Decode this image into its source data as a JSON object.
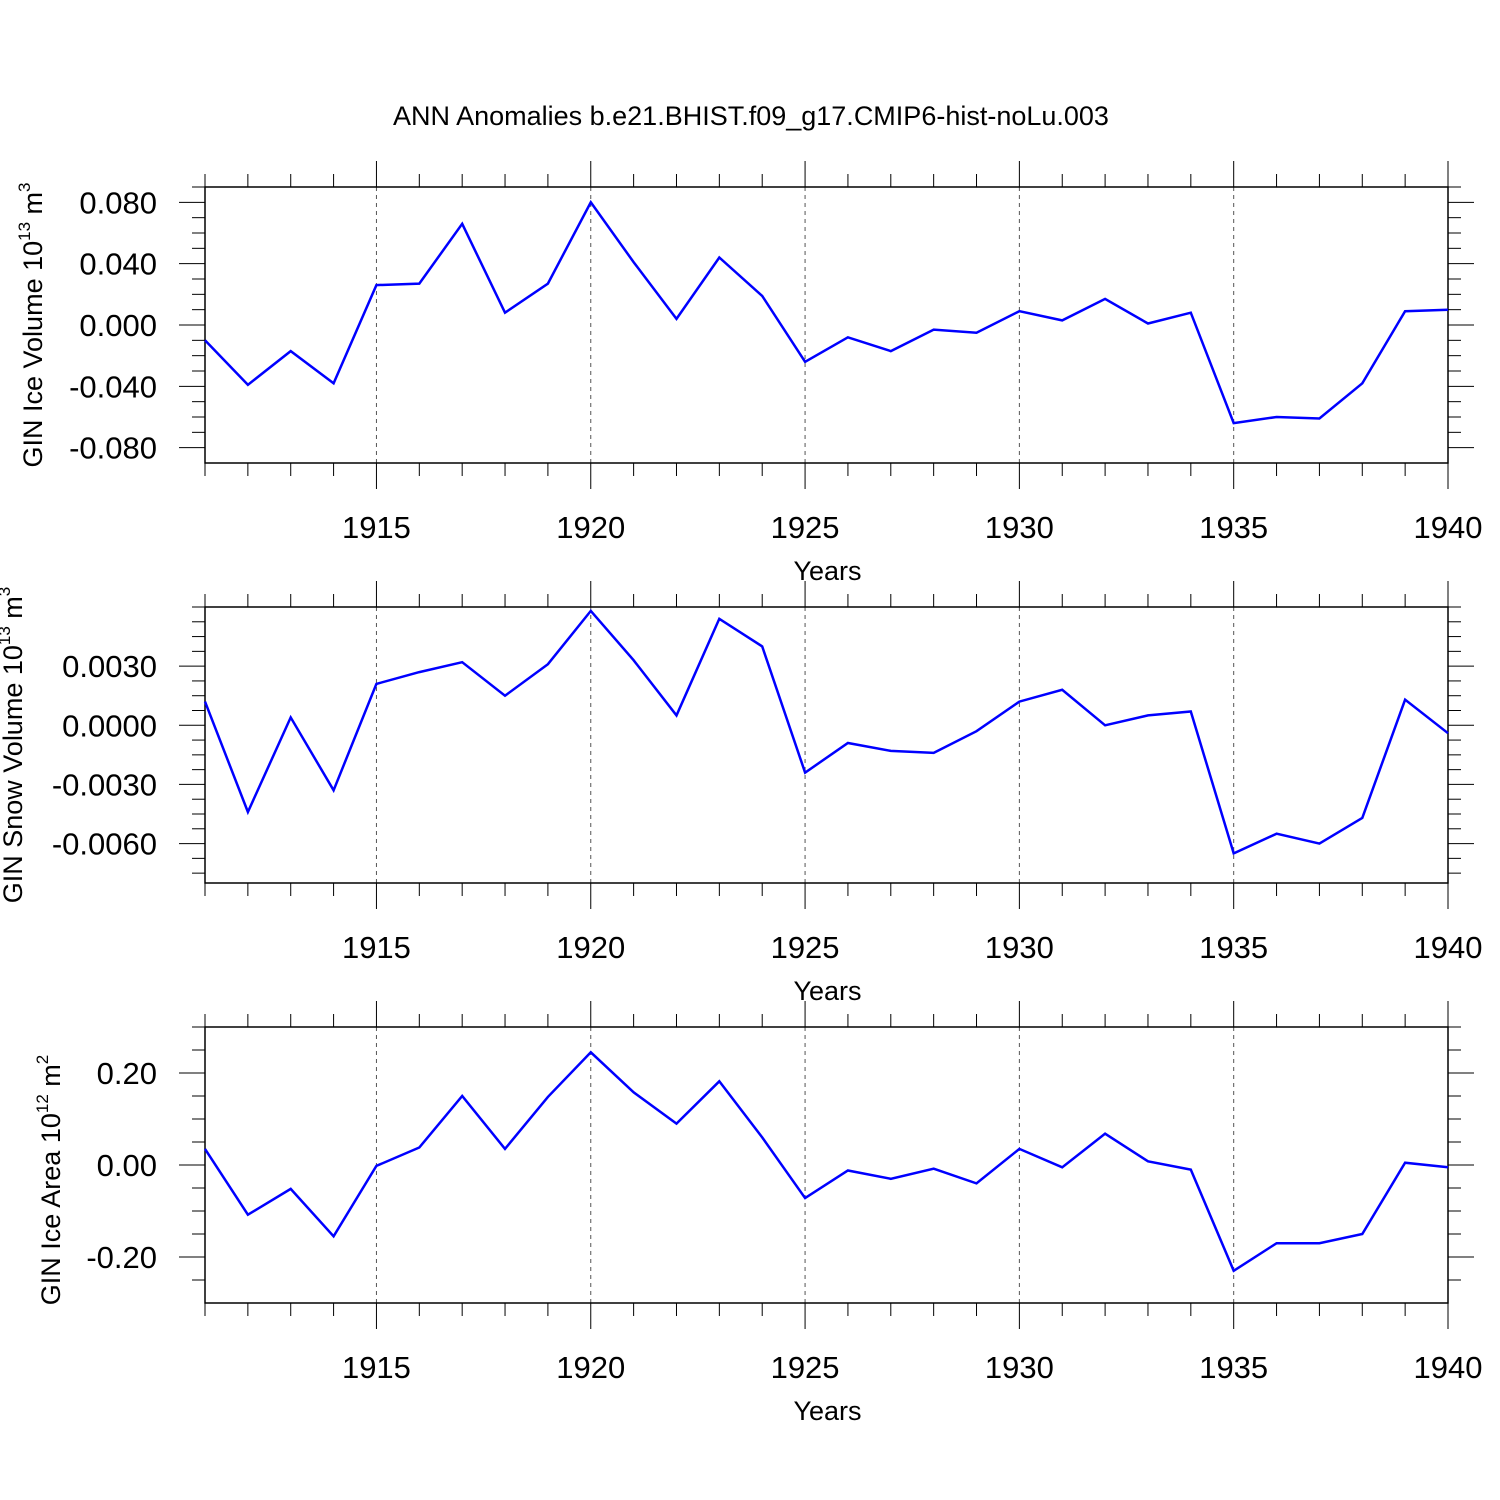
{
  "figure": {
    "title": "ANN Anomalies b.e21.BHIST.f09_g17.CMIP6-hist-noLu.003"
  },
  "chart_data": [
    {
      "type": "line",
      "name": "ice-volume",
      "title": "",
      "ylabel": "GIN Ice Volume 10",
      "ylabel_exp": "13",
      "ylabel_unit": " m",
      "ylabel_unit_exp": "3",
      "xlabel": "Years",
      "xlim": [
        1911,
        1940
      ],
      "ylim": [
        -0.09,
        0.09
      ],
      "xticks": [
        1915,
        1920,
        1925,
        1930,
        1935,
        1940
      ],
      "xtick_labels": [
        "1915",
        "1920",
        "1925",
        "1930",
        "1935",
        "1940"
      ],
      "yticks": [
        0.08,
        0.04,
        0.0,
        -0.04,
        -0.08
      ],
      "ytick_labels": [
        "0.080",
        "0.040",
        "0.000",
        "-0.040",
        "-0.080"
      ],
      "grid": "vertical dashed at major x ticks",
      "color": "#0000ff",
      "x": [
        1911,
        1912,
        1913,
        1914,
        1915,
        1916,
        1917,
        1918,
        1919,
        1920,
        1921,
        1922,
        1923,
        1924,
        1925,
        1926,
        1927,
        1928,
        1929,
        1930,
        1931,
        1932,
        1933,
        1934,
        1935,
        1936,
        1937,
        1938,
        1939,
        1940
      ],
      "y": [
        -0.01,
        -0.039,
        -0.017,
        -0.038,
        0.026,
        0.027,
        0.066,
        0.008,
        0.027,
        0.08,
        0.041,
        0.004,
        0.044,
        0.019,
        -0.024,
        -0.008,
        -0.017,
        -0.003,
        -0.005,
        0.009,
        0.003,
        0.017,
        0.001,
        0.008,
        -0.064,
        -0.06,
        -0.061,
        -0.038,
        0.009,
        0.01
      ]
    },
    {
      "type": "line",
      "name": "snow-volume",
      "title": "",
      "ylabel": "GIN Snow Volume 10",
      "ylabel_exp": "13",
      "ylabel_unit": " m",
      "ylabel_unit_exp": "3",
      "xlabel": "Years",
      "xlim": [
        1911,
        1940
      ],
      "ylim": [
        -0.008,
        0.006
      ],
      "xticks": [
        1915,
        1920,
        1925,
        1930,
        1935,
        1940
      ],
      "xtick_labels": [
        "1915",
        "1920",
        "1925",
        "1930",
        "1935",
        "1940"
      ],
      "yticks": [
        0.003,
        0.0,
        -0.003,
        -0.006
      ],
      "ytick_labels": [
        "0.0030",
        "0.0000",
        "-0.0030",
        "-0.0060"
      ],
      "grid": "vertical dashed at major x ticks",
      "color": "#0000ff",
      "x": [
        1911,
        1912,
        1913,
        1914,
        1915,
        1916,
        1917,
        1918,
        1919,
        1920,
        1921,
        1922,
        1923,
        1924,
        1925,
        1926,
        1927,
        1928,
        1929,
        1930,
        1931,
        1932,
        1933,
        1934,
        1935,
        1936,
        1937,
        1938,
        1939,
        1940
      ],
      "y": [
        0.0012,
        -0.0044,
        0.0004,
        -0.0033,
        0.0021,
        0.0027,
        0.0032,
        0.0015,
        0.0031,
        0.0058,
        0.0033,
        0.0005,
        0.0054,
        0.004,
        -0.0024,
        -0.0009,
        -0.0013,
        -0.0014,
        -0.0003,
        0.0012,
        0.0018,
        0.0,
        0.0005,
        0.0007,
        -0.0065,
        -0.0055,
        -0.006,
        -0.0047,
        0.0013,
        -0.0004
      ]
    },
    {
      "type": "line",
      "name": "ice-area",
      "title": "",
      "ylabel": "GIN Ice Area 10",
      "ylabel_exp": "12",
      "ylabel_unit": " m",
      "ylabel_unit_exp": "2",
      "xlabel": "Years",
      "xlim": [
        1911,
        1940
      ],
      "ylim": [
        -0.3,
        0.3
      ],
      "xticks": [
        1915,
        1920,
        1925,
        1930,
        1935,
        1940
      ],
      "xtick_labels": [
        "1915",
        "1920",
        "1925",
        "1930",
        "1935",
        "1940"
      ],
      "yticks": [
        0.2,
        0.0,
        -0.2
      ],
      "ytick_labels": [
        "0.20",
        "0.00",
        "-0.20"
      ],
      "grid": "vertical dashed at major x ticks",
      "color": "#0000ff",
      "x": [
        1911,
        1912,
        1913,
        1914,
        1915,
        1916,
        1917,
        1918,
        1919,
        1920,
        1921,
        1922,
        1923,
        1924,
        1925,
        1926,
        1927,
        1928,
        1929,
        1930,
        1931,
        1932,
        1933,
        1934,
        1935,
        1936,
        1937,
        1938,
        1939,
        1940
      ],
      "y": [
        0.035,
        -0.108,
        -0.052,
        -0.155,
        -0.002,
        0.038,
        0.15,
        0.035,
        0.148,
        0.245,
        0.158,
        0.09,
        0.182,
        0.06,
        -0.072,
        -0.012,
        -0.03,
        -0.008,
        -0.04,
        0.035,
        -0.005,
        0.068,
        0.008,
        -0.01,
        -0.23,
        -0.17,
        -0.17,
        -0.15,
        0.005,
        -0.005
      ]
    }
  ]
}
